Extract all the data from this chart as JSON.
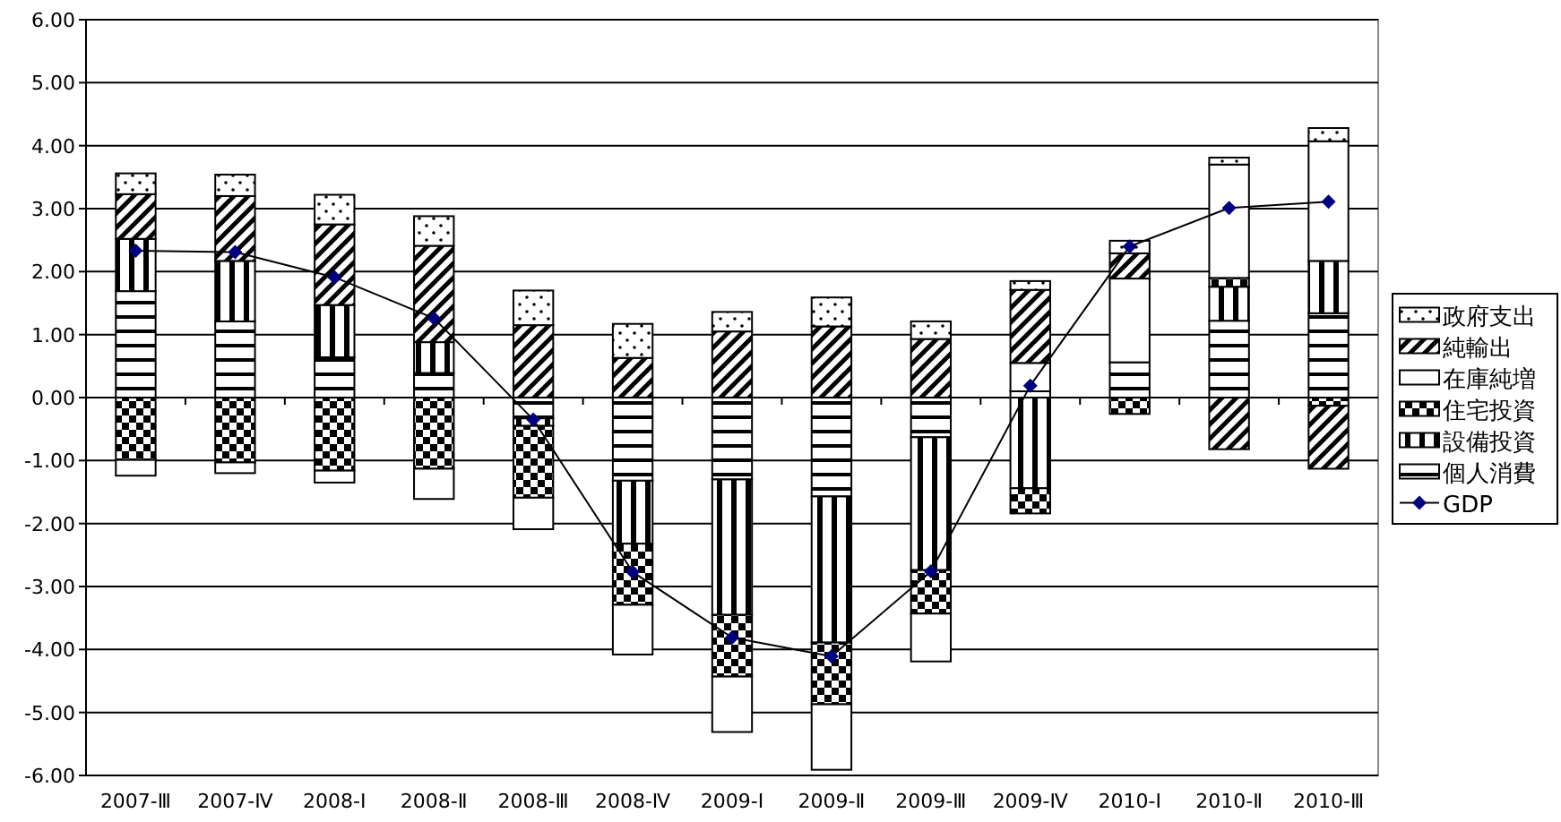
{
  "chart_data": {
    "type": "bar",
    "stacked": true,
    "grid": "y",
    "legend": "right",
    "marker": "diamond",
    "categories": [
      "2007-Ⅲ",
      "2007-Ⅳ",
      "2008-Ⅰ",
      "2008-Ⅱ",
      "2008-Ⅲ",
      "2008-Ⅳ",
      "2009-Ⅰ",
      "2009-Ⅱ",
      "2009-Ⅲ",
      "2009-Ⅳ",
      "2010-Ⅰ",
      "2010-Ⅱ",
      "2010-Ⅲ"
    ],
    "ylim": [
      -6,
      6
    ],
    "yticks": [
      {
        "value": -6,
        "label": "-6.00"
      },
      {
        "value": -5,
        "label": "-5.00"
      },
      {
        "value": -4,
        "label": "-4.00"
      },
      {
        "value": -3,
        "label": "-3.00"
      },
      {
        "value": -2,
        "label": "-2.00"
      },
      {
        "value": -1,
        "label": "-1.00"
      },
      {
        "value": 0,
        "label": "0.00"
      },
      {
        "value": 1,
        "label": "1.00"
      },
      {
        "value": 2,
        "label": "2.00"
      },
      {
        "value": 3,
        "label": "3.00"
      },
      {
        "value": 4,
        "label": "4.00"
      },
      {
        "value": 5,
        "label": "5.00"
      },
      {
        "value": 6,
        "label": "6.00"
      }
    ],
    "series": [
      {
        "name": "個人消費",
        "color": "#000000",
        "values": [
          1.69,
          1.21,
          0.64,
          0.39,
          -0.33,
          -1.32,
          -1.3,
          -1.57,
          -0.63,
          0.1,
          0.56,
          1.22,
          1.34
        ]
      },
      {
        "name": "設備投資",
        "color": "#000000",
        "values": [
          0.83,
          0.96,
          0.83,
          0.49,
          -0.12,
          -1.0,
          -2.15,
          -2.32,
          -2.11,
          -1.44,
          null,
          0.54,
          0.83
        ]
      },
      {
        "name": "住宅投資",
        "color": "#000000",
        "values": [
          -0.99,
          -1.03,
          -1.16,
          -1.13,
          -1.14,
          -0.97,
          -0.98,
          -0.98,
          -0.69,
          -0.4,
          -0.26,
          0.14,
          -0.13
        ]
      },
      {
        "name": "在庫純増",
        "color": "#ffffff",
        "values": [
          -0.25,
          -0.17,
          -0.19,
          -0.48,
          -0.5,
          -0.79,
          -0.88,
          -1.04,
          -0.76,
          0.45,
          1.33,
          1.8,
          1.9
        ]
      },
      {
        "name": "純輸出",
        "color": "#000000",
        "values": [
          0.71,
          1.03,
          1.28,
          1.53,
          1.15,
          0.63,
          1.05,
          1.13,
          0.93,
          1.16,
          0.4,
          -0.82,
          -1.0
        ]
      },
      {
        "name": "政府支出",
        "color": "#000000",
        "values": [
          0.33,
          0.34,
          0.47,
          0.47,
          0.55,
          0.54,
          0.31,
          0.46,
          0.28,
          0.14,
          0.2,
          0.11,
          0.21
        ]
      },
      {
        "name": "GDP",
        "type": "line",
        "color": "#000080",
        "values": [
          2.33,
          2.31,
          1.91,
          1.26,
          -0.35,
          -2.77,
          -3.81,
          -4.11,
          -2.76,
          0.19,
          2.4,
          3.01,
          3.11
        ]
      }
    ]
  }
}
